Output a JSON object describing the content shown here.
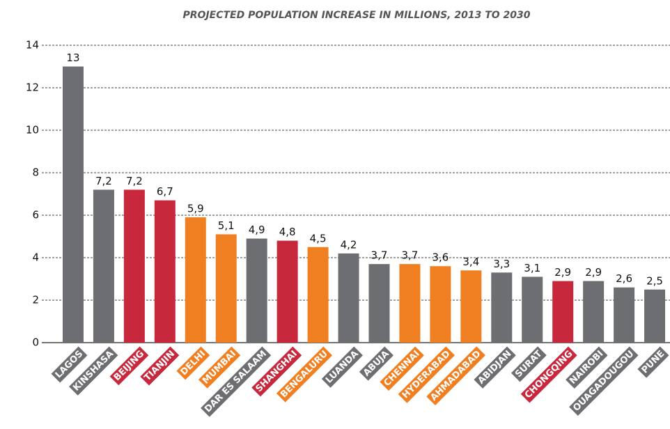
{
  "chart_data": {
    "type": "bar",
    "title": "PROJECTED POPULATION INCREASE IN MILLIONS, 2013 TO 2030",
    "categories": [
      "LAGOS",
      "KINSHASA",
      "BEIJING",
      "TIANJIN",
      "DELHI",
      "MUMBAI",
      "DAR ES SALAAM",
      "SHANGHAI",
      "BENGALURU",
      "LUANDA",
      "ABUJA",
      "CHENNAI",
      "HYDERABAD",
      "AHMADABAD",
      "ABIDJAN",
      "SURAT",
      "CHONGQING",
      "NAIROBI",
      "OUAGADOUGOU",
      "PUNE"
    ],
    "values": [
      13,
      7.2,
      7.2,
      6.7,
      5.9,
      5.1,
      4.9,
      4.8,
      4.5,
      4.2,
      3.7,
      3.7,
      3.6,
      3.4,
      3.3,
      3.1,
      2.9,
      2.9,
      2.6,
      2.5
    ],
    "value_labels": [
      "13",
      "7,2",
      "7,2",
      "6,7",
      "5,9",
      "5,1",
      "4,9",
      "4,8",
      "4,5",
      "4,2",
      "3,7",
      "3,7",
      "3,6",
      "3,4",
      "3,3",
      "3,1",
      "2,9",
      "2,9",
      "2,6",
      "2,5"
    ],
    "colors": [
      "#6d6e71",
      "#6d6e71",
      "#c8283c",
      "#c8283c",
      "#f07f22",
      "#f07f22",
      "#6d6e71",
      "#c8283c",
      "#f07f22",
      "#6d6e71",
      "#6d6e71",
      "#f07f22",
      "#f07f22",
      "#f07f22",
      "#6d6e71",
      "#6d6e71",
      "#c8283c",
      "#6d6e71",
      "#6d6e71",
      "#6d6e71"
    ],
    "ylim": [
      0,
      14
    ],
    "yticks": [
      0,
      2,
      4,
      6,
      8,
      10,
      12,
      14
    ],
    "grid": true
  }
}
